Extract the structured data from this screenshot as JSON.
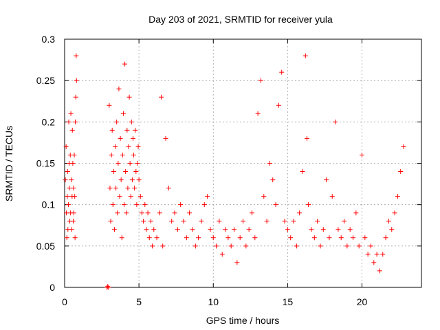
{
  "chart_data": {
    "type": "scatter",
    "title": "Day 203 of 2021, SRMTID for receiver yula",
    "xlabel": "GPS time / hours",
    "ylabel": "SRMTID / TECUs",
    "xlim": [
      0,
      24
    ],
    "ylim": [
      0,
      0.3
    ],
    "x_ticks": [
      0,
      5,
      10,
      15,
      20
    ],
    "y_ticks": [
      0,
      0.05,
      0.1,
      0.15,
      0.2,
      0.25,
      0.3
    ],
    "x_tick_labels": [
      "0",
      "5",
      "10",
      "15",
      "20"
    ],
    "y_tick_labels": [
      "0",
      "0.05",
      "0.1",
      "0.15",
      "0.2",
      "0.25",
      "0.3"
    ],
    "grid": true,
    "marker": "+",
    "color": "#ff0000",
    "series": [
      {
        "name": "SRMTID",
        "points": [
          [
            0.05,
            0.13
          ],
          [
            0.1,
            0.17
          ],
          [
            0.12,
            0.09
          ],
          [
            0.15,
            0.06
          ],
          [
            0.18,
            0.11
          ],
          [
            0.2,
            0.14
          ],
          [
            0.22,
            0.07
          ],
          [
            0.25,
            0.1
          ],
          [
            0.28,
            0.2
          ],
          [
            0.3,
            0.15
          ],
          [
            0.32,
            0.12
          ],
          [
            0.35,
            0.08
          ],
          [
            0.38,
            0.16
          ],
          [
            0.4,
            0.09
          ],
          [
            0.42,
            0.21
          ],
          [
            0.45,
            0.13
          ],
          [
            0.48,
            0.07
          ],
          [
            0.5,
            0.11
          ],
          [
            0.52,
            0.19
          ],
          [
            0.55,
            0.15
          ],
          [
            0.58,
            0.08
          ],
          [
            0.6,
            0.12
          ],
          [
            0.62,
            0.09
          ],
          [
            0.65,
            0.16
          ],
          [
            0.68,
            0.11
          ],
          [
            0.7,
            0.06
          ],
          [
            0.72,
            0.2
          ],
          [
            0.75,
            0.23
          ],
          [
            0.78,
            0.28
          ],
          [
            0.8,
            0.25
          ],
          [
            2.85,
            0.0
          ],
          [
            2.9,
            0.001
          ],
          [
            2.95,
            0.0
          ],
          [
            3.0,
            0.22
          ],
          [
            3.05,
            0.12
          ],
          [
            3.1,
            0.08
          ],
          [
            3.15,
            0.16
          ],
          [
            3.2,
            0.19
          ],
          [
            3.25,
            0.1
          ],
          [
            3.3,
            0.14
          ],
          [
            3.35,
            0.07
          ],
          [
            3.4,
            0.17
          ],
          [
            3.45,
            0.12
          ],
          [
            3.5,
            0.2
          ],
          [
            3.55,
            0.09
          ],
          [
            3.6,
            0.15
          ],
          [
            3.65,
            0.24
          ],
          [
            3.7,
            0.11
          ],
          [
            3.75,
            0.18
          ],
          [
            3.8,
            0.13
          ],
          [
            3.85,
            0.06
          ],
          [
            3.9,
            0.16
          ],
          [
            3.95,
            0.21
          ],
          [
            4.0,
            0.1
          ],
          [
            4.05,
            0.27
          ],
          [
            4.1,
            0.14
          ],
          [
            4.15,
            0.09
          ],
          [
            4.2,
            0.19
          ],
          [
            4.25,
            0.12
          ],
          [
            4.3,
            0.17
          ],
          [
            4.35,
            0.23
          ],
          [
            4.4,
            0.15
          ],
          [
            4.45,
            0.11
          ],
          [
            4.5,
            0.2
          ],
          [
            4.55,
            0.13
          ],
          [
            4.6,
            0.18
          ],
          [
            4.65,
            0.16
          ],
          [
            4.7,
            0.12
          ],
          [
            4.75,
            0.19
          ],
          [
            4.8,
            0.14
          ],
          [
            4.85,
            0.1
          ],
          [
            4.9,
            0.15
          ],
          [
            4.95,
            0.17
          ],
          [
            5.0,
            0.13
          ],
          [
            5.1,
            0.11
          ],
          [
            5.2,
            0.09
          ],
          [
            5.3,
            0.08
          ],
          [
            5.4,
            0.1
          ],
          [
            5.5,
            0.07
          ],
          [
            5.6,
            0.09
          ],
          [
            5.7,
            0.06
          ],
          [
            5.8,
            0.08
          ],
          [
            5.9,
            0.05
          ],
          [
            6.0,
            0.07
          ],
          [
            6.2,
            0.06
          ],
          [
            6.4,
            0.09
          ],
          [
            6.5,
            0.23
          ],
          [
            6.6,
            0.05
          ],
          [
            6.8,
            0.18
          ],
          [
            7.0,
            0.12
          ],
          [
            7.2,
            0.08
          ],
          [
            7.4,
            0.09
          ],
          [
            7.6,
            0.07
          ],
          [
            7.8,
            0.1
          ],
          [
            8.0,
            0.08
          ],
          [
            8.2,
            0.06
          ],
          [
            8.4,
            0.09
          ],
          [
            8.6,
            0.07
          ],
          [
            8.8,
            0.05
          ],
          [
            9.0,
            0.06
          ],
          [
            9.2,
            0.08
          ],
          [
            9.4,
            0.1
          ],
          [
            9.6,
            0.11
          ],
          [
            9.8,
            0.07
          ],
          [
            10.0,
            0.06
          ],
          [
            10.2,
            0.05
          ],
          [
            10.4,
            0.08
          ],
          [
            10.6,
            0.04
          ],
          [
            10.8,
            0.07
          ],
          [
            11.0,
            0.06
          ],
          [
            11.2,
            0.05
          ],
          [
            11.4,
            0.07
          ],
          [
            11.6,
            0.03
          ],
          [
            11.8,
            0.06
          ],
          [
            12.0,
            0.08
          ],
          [
            12.2,
            0.05
          ],
          [
            12.4,
            0.07
          ],
          [
            12.6,
            0.09
          ],
          [
            12.8,
            0.06
          ],
          [
            13.0,
            0.21
          ],
          [
            13.2,
            0.25
          ],
          [
            13.4,
            0.11
          ],
          [
            13.6,
            0.08
          ],
          [
            13.8,
            0.15
          ],
          [
            14.0,
            0.13
          ],
          [
            14.2,
            0.1
          ],
          [
            14.4,
            0.22
          ],
          [
            14.6,
            0.26
          ],
          [
            14.8,
            0.08
          ],
          [
            15.0,
            0.07
          ],
          [
            15.2,
            0.06
          ],
          [
            15.4,
            0.08
          ],
          [
            15.6,
            0.05
          ],
          [
            15.8,
            0.09
          ],
          [
            16.0,
            0.14
          ],
          [
            16.2,
            0.28
          ],
          [
            16.3,
            0.18
          ],
          [
            16.4,
            0.1
          ],
          [
            16.6,
            0.07
          ],
          [
            16.8,
            0.06
          ],
          [
            17.0,
            0.08
          ],
          [
            17.2,
            0.05
          ],
          [
            17.4,
            0.07
          ],
          [
            17.6,
            0.13
          ],
          [
            17.8,
            0.06
          ],
          [
            18.0,
            0.11
          ],
          [
            18.2,
            0.2
          ],
          [
            18.4,
            0.07
          ],
          [
            18.6,
            0.06
          ],
          [
            18.8,
            0.08
          ],
          [
            19.0,
            0.05
          ],
          [
            19.2,
            0.07
          ],
          [
            19.4,
            0.06
          ],
          [
            19.6,
            0.09
          ],
          [
            19.8,
            0.05
          ],
          [
            20.0,
            0.16
          ],
          [
            20.2,
            0.06
          ],
          [
            20.4,
            0.04
          ],
          [
            20.6,
            0.05
          ],
          [
            20.8,
            0.03
          ],
          [
            21.0,
            0.04
          ],
          [
            21.2,
            0.02
          ],
          [
            21.4,
            0.04
          ],
          [
            21.6,
            0.06
          ],
          [
            21.8,
            0.08
          ],
          [
            22.0,
            0.07
          ],
          [
            22.2,
            0.09
          ],
          [
            22.4,
            0.11
          ],
          [
            22.6,
            0.14
          ],
          [
            22.8,
            0.17
          ]
        ]
      }
    ]
  }
}
